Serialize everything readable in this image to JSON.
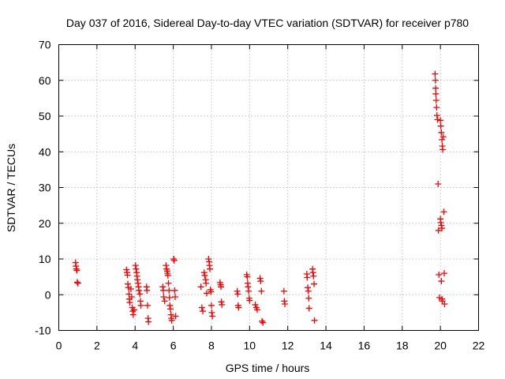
{
  "chart_data": {
    "type": "scatter",
    "title": "Day 037 of 2016, Sidereal Day-to-day VTEC variation (SDTVAR) for receiver p780",
    "xlabel": "GPS time / hours",
    "ylabel": "SDTVAR / TECUs",
    "xlim": [
      0,
      22
    ],
    "ylim": [
      -10,
      70
    ],
    "xticks": [
      0,
      2,
      4,
      6,
      8,
      10,
      12,
      14,
      16,
      18,
      20,
      22
    ],
    "yticks": [
      -10,
      0,
      10,
      20,
      30,
      40,
      50,
      60,
      70
    ],
    "grid": true,
    "marker": "plus",
    "series": [
      {
        "name": "p780",
        "color": "#ff0000",
        "points": [
          [
            0.88,
            9.0
          ],
          [
            0.9,
            8.0
          ],
          [
            0.92,
            7.2
          ],
          [
            0.95,
            6.8
          ],
          [
            0.97,
            3.5
          ],
          [
            1.0,
            3.2
          ],
          [
            3.55,
            7.0
          ],
          [
            3.58,
            6.2
          ],
          [
            3.6,
            5.5
          ],
          [
            3.62,
            3.0
          ],
          [
            3.65,
            2.0
          ],
          [
            3.68,
            0.2
          ],
          [
            3.7,
            -1.2
          ],
          [
            3.72,
            -2.2
          ],
          [
            3.78,
            1.6
          ],
          [
            3.82,
            -0.6
          ],
          [
            3.85,
            -3.6
          ],
          [
            3.88,
            -4.6
          ],
          [
            3.9,
            -5.6
          ],
          [
            3.95,
            -4.2
          ],
          [
            4.02,
            8.2
          ],
          [
            4.05,
            7.2
          ],
          [
            4.08,
            6.2
          ],
          [
            4.1,
            5.2
          ],
          [
            4.12,
            4.2
          ],
          [
            4.15,
            3.2
          ],
          [
            4.18,
            2.2
          ],
          [
            4.2,
            1.2
          ],
          [
            4.25,
            0.2
          ],
          [
            4.28,
            -1.8
          ],
          [
            4.3,
            -3.0
          ],
          [
            4.6,
            2.2
          ],
          [
            4.62,
            1.2
          ],
          [
            4.65,
            -3.0
          ],
          [
            4.68,
            -6.6
          ],
          [
            4.7,
            -7.6
          ],
          [
            5.45,
            2.2
          ],
          [
            5.48,
            1.2
          ],
          [
            5.5,
            -0.6
          ],
          [
            5.55,
            -1.8
          ],
          [
            5.62,
            8.2
          ],
          [
            5.65,
            7.2
          ],
          [
            5.68,
            6.6
          ],
          [
            5.7,
            6.0
          ],
          [
            5.72,
            5.4
          ],
          [
            5.75,
            3.2
          ],
          [
            5.78,
            1.2
          ],
          [
            5.8,
            -0.8
          ],
          [
            5.82,
            -3.0
          ],
          [
            5.85,
            -4.0
          ],
          [
            5.88,
            -5.6
          ],
          [
            5.9,
            -6.6
          ],
          [
            5.92,
            -7.2
          ],
          [
            6.02,
            10.0
          ],
          [
            6.05,
            9.6
          ],
          [
            6.08,
            1.2
          ],
          [
            6.1,
            -0.6
          ],
          [
            6.12,
            -6.0
          ],
          [
            7.45,
            2.2
          ],
          [
            7.5,
            -3.6
          ],
          [
            7.55,
            -4.6
          ],
          [
            7.62,
            6.2
          ],
          [
            7.65,
            5.4
          ],
          [
            7.7,
            4.2
          ],
          [
            7.72,
            3.2
          ],
          [
            7.75,
            0.4
          ],
          [
            7.85,
            10.0
          ],
          [
            7.88,
            9.2
          ],
          [
            7.9,
            8.2
          ],
          [
            7.92,
            7.2
          ],
          [
            7.95,
            1.4
          ],
          [
            7.98,
            0.8
          ],
          [
            8.0,
            -3.0
          ],
          [
            8.02,
            -5.0
          ],
          [
            8.05,
            -6.0
          ],
          [
            8.45,
            3.4
          ],
          [
            8.48,
            2.8
          ],
          [
            8.5,
            2.2
          ],
          [
            8.52,
            -2.0
          ],
          [
            8.55,
            -2.8
          ],
          [
            9.35,
            1.0
          ],
          [
            9.38,
            0.2
          ],
          [
            9.4,
            -3.0
          ],
          [
            9.42,
            -3.6
          ],
          [
            9.85,
            5.6
          ],
          [
            9.88,
            5.0
          ],
          [
            9.9,
            3.2
          ],
          [
            9.92,
            2.2
          ],
          [
            9.95,
            1.0
          ],
          [
            9.98,
            -1.0
          ],
          [
            10.0,
            -1.6
          ],
          [
            10.3,
            -2.8
          ],
          [
            10.35,
            -3.6
          ],
          [
            10.4,
            -4.2
          ],
          [
            10.55,
            4.6
          ],
          [
            10.58,
            3.8
          ],
          [
            10.62,
            1.0
          ],
          [
            10.65,
            -7.4
          ],
          [
            10.7,
            -7.8
          ],
          [
            11.8,
            1.0
          ],
          [
            11.82,
            -1.8
          ],
          [
            11.85,
            -2.6
          ],
          [
            13.0,
            5.8
          ],
          [
            13.02,
            4.8
          ],
          [
            13.05,
            2.0
          ],
          [
            13.08,
            1.0
          ],
          [
            13.1,
            -1.0
          ],
          [
            13.12,
            -3.8
          ],
          [
            13.3,
            7.2
          ],
          [
            13.32,
            6.2
          ],
          [
            13.35,
            5.2
          ],
          [
            13.38,
            3.0
          ],
          [
            13.4,
            -7.2
          ],
          [
            19.72,
            61.8
          ],
          [
            19.74,
            60.0
          ],
          [
            19.75,
            57.8
          ],
          [
            19.76,
            56.2
          ],
          [
            19.78,
            54.4
          ],
          [
            19.8,
            52.4
          ],
          [
            19.82,
            50.2
          ],
          [
            19.85,
            49.0
          ],
          [
            19.88,
            31.0
          ],
          [
            19.9,
            18.0
          ],
          [
            19.92,
            5.6
          ],
          [
            19.95,
            -0.8
          ],
          [
            20.0,
            48.8
          ],
          [
            20.02,
            47.2
          ],
          [
            20.05,
            45.4
          ],
          [
            20.08,
            43.4
          ],
          [
            20.1,
            41.6
          ],
          [
            20.12,
            40.6
          ],
          [
            20.0,
            21.2
          ],
          [
            20.02,
            20.2
          ],
          [
            20.05,
            19.4
          ],
          [
            20.08,
            18.6
          ],
          [
            20.05,
            3.8
          ],
          [
            20.08,
            -1.2
          ],
          [
            20.1,
            -1.8
          ],
          [
            20.15,
            44.2
          ],
          [
            20.18,
            23.2
          ],
          [
            20.2,
            6.0
          ],
          [
            20.22,
            -2.6
          ]
        ]
      }
    ]
  }
}
